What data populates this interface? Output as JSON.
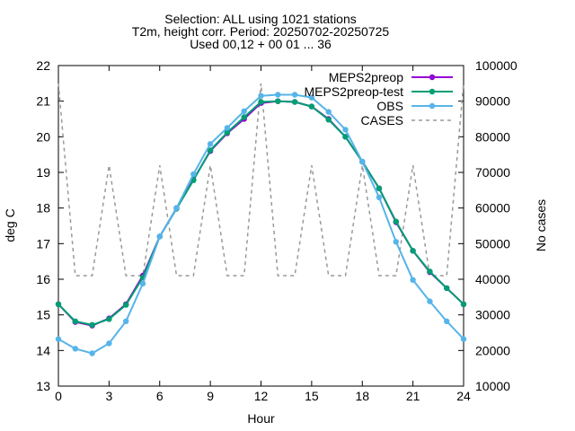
{
  "chart_data": {
    "type": "line",
    "title_lines": [
      "Selection: ALL using  1021 stations",
      "T2m, height corr.   Period: 20250702-20250725",
      "Used 00,12 + 00 01 ... 36"
    ],
    "xlabel": "Hour",
    "ylabel": "deg C",
    "y2label": "No cases",
    "xlim": [
      0,
      24
    ],
    "ylim": [
      13,
      22
    ],
    "y2lim": [
      10000,
      100000
    ],
    "xticks": [
      0,
      3,
      6,
      9,
      12,
      15,
      18,
      21,
      24
    ],
    "yticks": [
      13,
      14,
      15,
      16,
      17,
      18,
      19,
      20,
      21,
      22
    ],
    "y2ticks": [
      10000,
      20000,
      30000,
      40000,
      50000,
      60000,
      70000,
      80000,
      90000,
      100000
    ],
    "grid": false,
    "legend_position": "top-right",
    "x": [
      0,
      1,
      2,
      3,
      4,
      5,
      6,
      7,
      8,
      9,
      10,
      11,
      12,
      13,
      14,
      15,
      16,
      17,
      18,
      19,
      20,
      21,
      22,
      23,
      24
    ],
    "series": [
      {
        "name": "MEPS2preop",
        "color": "#9400d3",
        "axis": "y",
        "style": "line-points",
        "values": [
          15.3,
          14.8,
          14.7,
          14.9,
          15.3,
          16.1,
          17.2,
          18.0,
          18.8,
          19.6,
          20.1,
          20.5,
          20.95,
          21.0,
          20.98,
          20.85,
          20.5,
          20.0,
          19.3,
          18.55,
          17.6,
          16.8,
          16.2,
          15.75,
          15.3
        ]
      },
      {
        "name": "MEPS2preop-test",
        "color": "#009e73",
        "axis": "y",
        "style": "line-points",
        "values": [
          15.3,
          14.82,
          14.72,
          14.88,
          15.28,
          16.05,
          17.2,
          17.98,
          18.78,
          19.62,
          20.12,
          20.55,
          20.98,
          21.0,
          20.98,
          20.85,
          20.48,
          20.0,
          19.3,
          18.55,
          17.62,
          16.8,
          16.22,
          15.75,
          15.3
        ]
      },
      {
        "name": "OBS",
        "color": "#56b4e9",
        "axis": "y",
        "style": "line-points",
        "values": [
          14.32,
          14.05,
          13.92,
          14.2,
          14.82,
          15.88,
          17.2,
          18.0,
          18.95,
          19.8,
          20.25,
          20.72,
          21.15,
          21.18,
          21.18,
          21.1,
          20.7,
          20.2,
          19.3,
          18.3,
          17.05,
          15.98,
          15.38,
          14.82,
          14.32
        ]
      },
      {
        "name": "CASES",
        "color": "#999999",
        "axis": "y2",
        "style": "dashed",
        "values": [
          95000,
          41000,
          41000,
          72000,
          41000,
          41000,
          72000,
          41000,
          41000,
          72000,
          41000,
          41000,
          95000,
          41000,
          41000,
          72000,
          41000,
          41000,
          72000,
          41000,
          41000,
          72000,
          41000,
          41000,
          95000
        ]
      }
    ]
  }
}
